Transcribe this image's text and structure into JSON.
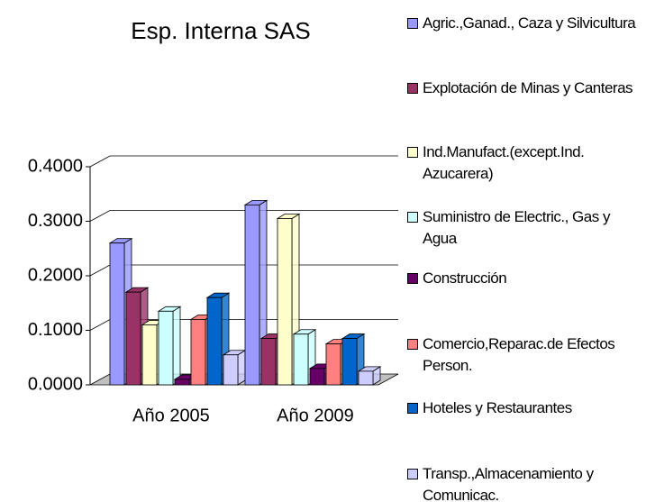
{
  "chart_data": {
    "type": "bar3d",
    "title": "Esp. Interna SAS",
    "categories": [
      "Año 2005",
      "Año 2009"
    ],
    "series": [
      {
        "name": "Agric.,Ganad., Caza y Silvicultura",
        "color": "#9999ff",
        "values": [
          0.26,
          0.33
        ]
      },
      {
        "name": "Explotación de Minas y Canteras",
        "color": "#993366",
        "values": [
          0.17,
          0.085
        ]
      },
      {
        "name": "Ind.Manufact.(except.Ind. Azucarera)",
        "color": "#ffffcc",
        "values": [
          0.11,
          0.305
        ]
      },
      {
        "name": "Suministro de Electric., Gas y Agua",
        "color": "#ccffff",
        "values": [
          0.135,
          0.093
        ]
      },
      {
        "name": "Construcción",
        "color": "#660066",
        "values": [
          0.01,
          0.03
        ]
      },
      {
        "name": "Comercio,Reparac.de Efectos Person.",
        "color": "#ff8080",
        "values": [
          0.12,
          0.075
        ]
      },
      {
        "name": "Hoteles y Restaurantes",
        "color": "#0066cc",
        "values": [
          0.16,
          0.085
        ]
      },
      {
        "name": "Transp.,Almacenamiento y Comunicac.",
        "color": "#ccccff",
        "values": [
          0.055,
          0.025
        ]
      }
    ],
    "ylim": [
      0,
      0.4
    ],
    "yticks": [
      {
        "value": 0,
        "label": "0.0000"
      },
      {
        "value": 0.1,
        "label": "0.1000"
      },
      {
        "value": 0.2,
        "label": "0.2000"
      },
      {
        "value": 0.3,
        "label": "0.3000"
      },
      {
        "value": 0.4,
        "label": "0.4000"
      }
    ],
    "grid": true
  }
}
